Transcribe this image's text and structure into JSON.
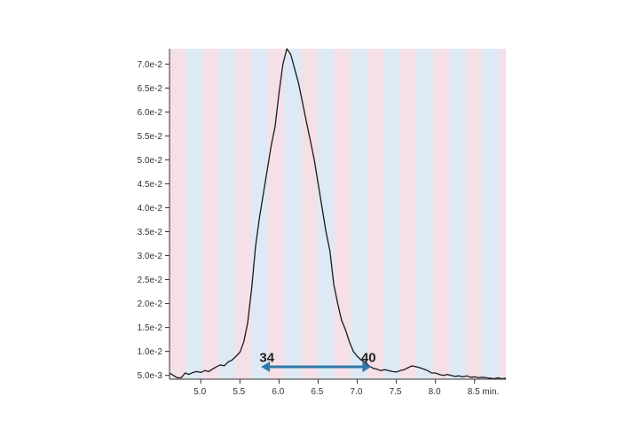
{
  "colors": {
    "band_pink": "#f4e0e6",
    "band_blue": "#dde9f5",
    "trace": "#1a1a1a",
    "arrow": "#2f79a6",
    "axis": "#333333"
  },
  "chart_data": {
    "type": "line",
    "title": "",
    "xlabel": "",
    "ylabel": "",
    "xlim": [
      4.6,
      8.9
    ],
    "ylim": [
      0.0042,
      0.0732
    ],
    "x_ticks": [
      5.0,
      5.5,
      6.0,
      6.5,
      7.0,
      7.5,
      8.0,
      8.5
    ],
    "x_tick_labels": [
      "5.0",
      "5.5",
      "6.0",
      "6.5",
      "7.0",
      "7.5",
      "8.0",
      "8.5 min."
    ],
    "y_ticks": [
      0.005,
      0.01,
      0.015,
      0.02,
      0.025,
      0.03,
      0.035,
      0.04,
      0.045,
      0.05,
      0.055,
      0.06,
      0.065,
      0.07
    ],
    "y_tick_labels": [
      "5.0e-3",
      "1.0e-2",
      "1.5e-2",
      "2.0e-2",
      "2.5e-2",
      "3.0e-2",
      "3.5e-2",
      "4.0e-2",
      "4.5e-2",
      "5.0e-2",
      "5.5e-2",
      "6.0e-2",
      "6.5e-2",
      "7.0e-2"
    ],
    "fraction_bands": {
      "start": 4.6,
      "width": 0.2107,
      "pattern": [
        "pink",
        "blue"
      ]
    },
    "series": [
      {
        "x": [
          4.6,
          4.65,
          4.7,
          4.75,
          4.8,
          4.85,
          4.9,
          4.95,
          5.0,
          5.05,
          5.1,
          5.15,
          5.2,
          5.25,
          5.3,
          5.35,
          5.4,
          5.45,
          5.5,
          5.55,
          5.6,
          5.65,
          5.7,
          5.75,
          5.8,
          5.85,
          5.9,
          5.95,
          6.0,
          6.05,
          6.1,
          6.15,
          6.2,
          6.25,
          6.3,
          6.35,
          6.4,
          6.45,
          6.5,
          6.55,
          6.6,
          6.65,
          6.7,
          6.75,
          6.8,
          6.85,
          6.9,
          6.95,
          7.0,
          7.05,
          7.1,
          7.15,
          7.2,
          7.25,
          7.3,
          7.35,
          7.4,
          7.45,
          7.5,
          7.55,
          7.6,
          7.65,
          7.7,
          7.75,
          7.8,
          7.85,
          7.9,
          7.95,
          8.0,
          8.05,
          8.1,
          8.15,
          8.2,
          8.25,
          8.3,
          8.35,
          8.4,
          8.45,
          8.5,
          8.55,
          8.6,
          8.65,
          8.7,
          8.75,
          8.8,
          8.85,
          8.9
        ],
        "y": [
          0.0055,
          0.005,
          0.0045,
          0.0045,
          0.0055,
          0.0052,
          0.0056,
          0.0058,
          0.0056,
          0.006,
          0.0058,
          0.0063,
          0.0068,
          0.0072,
          0.007,
          0.0078,
          0.0082,
          0.009,
          0.0098,
          0.012,
          0.016,
          0.023,
          0.032,
          0.038,
          0.043,
          0.048,
          0.053,
          0.057,
          0.064,
          0.07,
          0.0732,
          0.072,
          0.069,
          0.066,
          0.062,
          0.058,
          0.054,
          0.05,
          0.045,
          0.04,
          0.035,
          0.031,
          0.024,
          0.02,
          0.0165,
          0.0145,
          0.012,
          0.01,
          0.009,
          0.0082,
          0.0078,
          0.007,
          0.0065,
          0.0063,
          0.006,
          0.0062,
          0.006,
          0.0058,
          0.0057,
          0.006,
          0.0062,
          0.0066,
          0.007,
          0.0068,
          0.0066,
          0.0063,
          0.006,
          0.0055,
          0.0055,
          0.0052,
          0.005,
          0.0052,
          0.005,
          0.0048,
          0.0049,
          0.0047,
          0.0049,
          0.0046,
          0.0047,
          0.0045,
          0.0046,
          0.0045,
          0.0044,
          0.0043,
          0.0045,
          0.0043,
          0.0044
        ]
      }
    ],
    "annotations": [
      {
        "type": "text",
        "text": "34",
        "x": 5.75,
        "y": 0.0078
      },
      {
        "type": "text",
        "text": "40",
        "x": 7.05,
        "y": 0.0078
      },
      {
        "type": "double-arrow",
        "x_start": 5.77,
        "x_end": 7.18,
        "y": 0.0068
      }
    ]
  }
}
